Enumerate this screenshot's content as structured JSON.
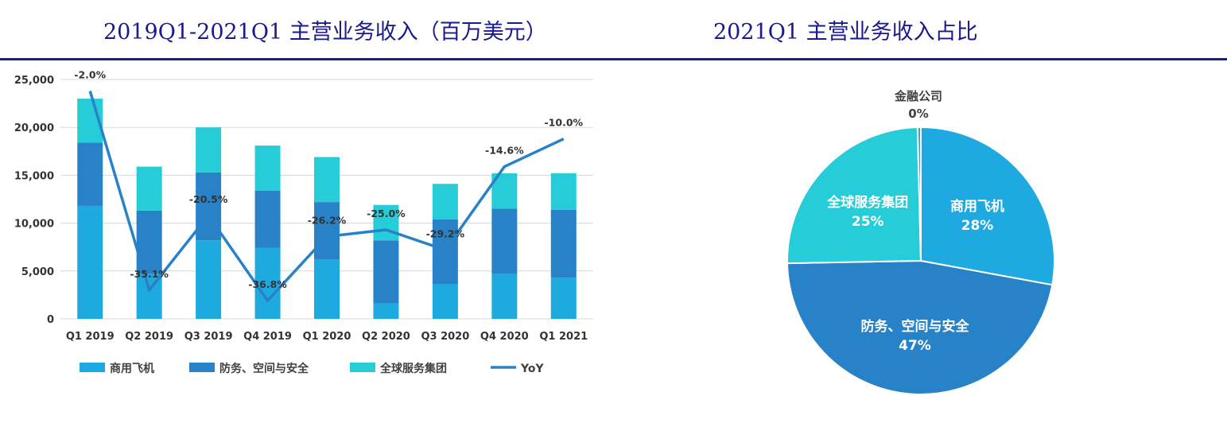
{
  "left_title": "2019Q1-2021Q1 主营业务收入（百万美元）",
  "right_title": "2021Q1 主营业务收入占比",
  "chart_data": [
    {
      "type": "bar",
      "stacked": true,
      "title": "2019Q1-2021Q1 主营业务收入（百万美元）",
      "categories": [
        "Q1 2019",
        "Q2 2019",
        "Q3 2019",
        "Q4 2019",
        "Q1 2020",
        "Q2 2020",
        "Q3 2020",
        "Q4 2020",
        "Q1 2021"
      ],
      "ylim": [
        0,
        25000
      ],
      "yticks": [
        0,
        5000,
        10000,
        15000,
        20000,
        25000
      ],
      "ytick_labels": [
        "0",
        "5,000",
        "10,000",
        "15,000",
        "20,000",
        "25,000"
      ],
      "grid": true,
      "legend_position": "bottom",
      "series": [
        {
          "name": "商用飞机",
          "color": "#1fa9e1",
          "values": [
            11800,
            4700,
            8200,
            7400,
            6200,
            1600,
            3600,
            4700,
            4300
          ]
        },
        {
          "name": "防务、空间与安全",
          "color": "#2882c8",
          "values": [
            6600,
            6600,
            7100,
            6000,
            6000,
            6600,
            6800,
            6800,
            7100
          ]
        },
        {
          "name": "全球服务集团",
          "color": "#26cdd8",
          "values": [
            4600,
            4600,
            4700,
            4700,
            4700,
            3700,
            3700,
            3700,
            3800
          ]
        }
      ],
      "line_series": {
        "name": "YoY",
        "color": "#2882c8",
        "labels": [
          "-2.0%",
          "-35.1%",
          "-20.5%",
          "-36.8%",
          "-26.2%",
          "-25.0%",
          "-29.2%",
          "-14.6%",
          "-10.0%"
        ],
        "values": [
          23800,
          3000,
          10800,
          1900,
          8600,
          9300,
          7200,
          15900,
          18800
        ]
      }
    },
    {
      "type": "pie",
      "title": "2021Q1 主营业务收入占比",
      "slices": [
        {
          "name": "商用飞机",
          "value": 28,
          "label": "28%",
          "color": "#1fa9e1"
        },
        {
          "name": "防务、空间与安全",
          "value": 47,
          "label": "47%",
          "color": "#2882c8"
        },
        {
          "name": "全球服务集团",
          "value": 25,
          "label": "25%",
          "color": "#26cdd8"
        },
        {
          "name": "金融公司",
          "value": 0.4,
          "label": "0%",
          "color": "#3d9fe0"
        }
      ]
    }
  ]
}
